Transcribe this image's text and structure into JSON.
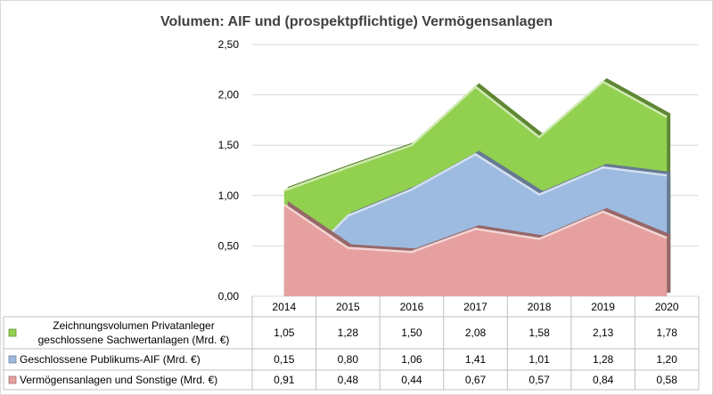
{
  "chart_data": {
    "type": "area",
    "title": "Volumen: AIF und (prospektpflichtige) Vermögensanlagen",
    "categories": [
      "2014",
      "2015",
      "2016",
      "2017",
      "2018",
      "2019",
      "2020"
    ],
    "y_ticks": [
      "0,00",
      "0,50",
      "1,00",
      "1,50",
      "2,00",
      "2,50"
    ],
    "ylim": [
      0,
      2.5
    ],
    "stacked": false,
    "grid": true,
    "legend": "data-table",
    "series": [
      {
        "name": "Zeichnungsvolumen Privatanleger geschlossene Sachwertanlagen (Mrd. €)",
        "name_lines": [
          "Zeichnungsvolumen Privatanleger",
          "geschlossene Sachwertanlagen (Mrd. €)"
        ],
        "values": [
          1.05,
          1.28,
          1.5,
          2.08,
          1.58,
          2.13,
          1.78
        ],
        "labels": [
          "1,05",
          "1,28",
          "1,50",
          "2,08",
          "1,58",
          "2,13",
          "1,78"
        ],
        "color": "#92d050"
      },
      {
        "name": "Geschlossene Publikums-AIF (Mrd. €)",
        "values": [
          0.15,
          0.8,
          1.06,
          1.41,
          1.01,
          1.28,
          1.2
        ],
        "labels": [
          "0,15",
          "0,80",
          "1,06",
          "1,41",
          "1,01",
          "1,28",
          "1,20"
        ],
        "color": "#9dbbe0"
      },
      {
        "name": "Vermögensanlagen und Sonstige (Mrd. €)",
        "values": [
          0.91,
          0.48,
          0.44,
          0.67,
          0.57,
          0.84,
          0.58
        ],
        "labels": [
          "0,91",
          "0,48",
          "0,44",
          "0,67",
          "0,57",
          "0,84",
          "0,58"
        ],
        "color": "#e6a0a0"
      }
    ]
  }
}
